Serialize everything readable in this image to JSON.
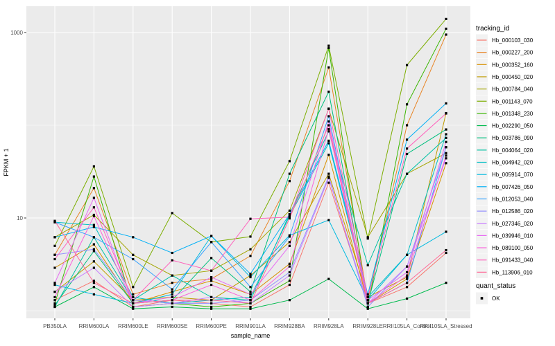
{
  "chart_data": {
    "type": "line",
    "title": "",
    "xlabel": "sample_name",
    "ylabel": "FPKM + 1",
    "yscale": "log10",
    "ytick_labels": [
      "10",
      "1000"
    ],
    "yticks": [
      10,
      1000
    ],
    "minor_grid_values": [
      1,
      100
    ],
    "grid": true,
    "legend_position": "right",
    "panel_bg": "#EBEBEB",
    "grid_color": "#FFFFFF",
    "tick_label_color": "#4D4D4D",
    "axis_title_color": "#000000",
    "point_color": "#000000",
    "legend_key_bg": "#F2F2F2",
    "legend_title": "tracking_id",
    "legend2_title": "quant_status",
    "legend2_entries": [
      "OK"
    ],
    "x_categories": [
      "PB350LA",
      "RRIM600LA",
      "RRIM600LE",
      "RRIM600SE",
      "RRIM600PE",
      "RRIM901LA",
      "RRIM928BA",
      "RRIM928LA",
      "RRIM928LE",
      "RRII105LA_Control",
      "RRII105LA_Stressed"
    ],
    "series": [
      {
        "name": "Hb_000103_030",
        "color": "#F8766D",
        "values": [
          1.3,
          2.1,
          1.1,
          1.3,
          1.2,
          1.1,
          1.9,
          24,
          1.2,
          1.8,
          4.2
        ]
      },
      {
        "name": "Hb_000227_200",
        "color": "#E88526",
        "values": [
          4.0,
          21,
          1.5,
          2.0,
          2.2,
          3.9,
          25,
          420,
          1.3,
          100,
          950
        ]
      },
      {
        "name": "Hb_000352_160",
        "color": "#D89000",
        "values": [
          2.9,
          5.2,
          1.2,
          1.6,
          2.1,
          1.5,
          3.2,
          48,
          1.2,
          2.2,
          39
        ]
      },
      {
        "name": "Hb_000450_020",
        "color": "#C09B00",
        "values": [
          1.6,
          3.4,
          1.3,
          1.4,
          1.3,
          2.4,
          5.5,
          30,
          1.4,
          2.3,
          135
        ]
      },
      {
        "name": "Hb_000784_040",
        "color": "#A3A500",
        "values": [
          6.2,
          10.8,
          4.0,
          2.4,
          2.7,
          4.6,
          12,
          150,
          6.2,
          30,
          50
        ]
      },
      {
        "name": "Hb_001143_070",
        "color": "#7CAE00",
        "values": [
          5.0,
          36,
          1.8,
          11.3,
          5.5,
          6.3,
          41,
          720,
          6.0,
          446,
          1400
        ]
      },
      {
        "name": "Hb_001348_230",
        "color": "#39B600",
        "values": [
          1.2,
          28,
          1.1,
          1.2,
          1.1,
          1.2,
          2.1,
          680,
          1.1,
          168,
          1100
        ]
      },
      {
        "name": "Hb_002290_050",
        "color": "#00BB4E",
        "values": [
          1.1,
          1.8,
          1.05,
          1.1,
          1.05,
          1.05,
          1.3,
          2.2,
          1.05,
          1.35,
          2.0
        ]
      },
      {
        "name": "Hb_003786_090",
        "color": "#00BF7D",
        "values": [
          1.15,
          4.4,
          1.2,
          1.3,
          3.7,
          1.6,
          30,
          230,
          1.2,
          49,
          90
        ]
      },
      {
        "name": "Hb_004064_020",
        "color": "#00C1A3",
        "values": [
          1.1,
          6.2,
          1.3,
          2.4,
          1.4,
          1.3,
          11,
          86,
          3.1,
          30,
          73
        ]
      },
      {
        "name": "Hb_004942_020",
        "color": "#00BFC4",
        "values": [
          9.0,
          8.4,
          1.4,
          1.2,
          1.3,
          1.4,
          10.5,
          64,
          1.4,
          4.0,
          80
        ]
      },
      {
        "name": "Hb_005914_070",
        "color": "#00BAE0",
        "values": [
          1.9,
          1.5,
          1.2,
          1.5,
          6.4,
          2.3,
          6.5,
          9.5,
          1.3,
          4.0,
          7.1
        ]
      },
      {
        "name": "Hb_007426_050",
        "color": "#00B0F6",
        "values": [
          6.2,
          8.0,
          6.2,
          4.2,
          6.4,
          2.5,
          11,
          68,
          1.5,
          70,
          172
        ]
      },
      {
        "name": "Hb_012053_040",
        "color": "#35A2FF",
        "values": [
          9.0,
          6.2,
          3.6,
          1.7,
          5.5,
          1.8,
          6.3,
          125,
          1.2,
          2.0,
          58
        ]
      },
      {
        "name": "Hb_012586_020",
        "color": "#9590FF",
        "values": [
          4.0,
          4.6,
          1.3,
          1.2,
          1.2,
          1.3,
          2.6,
          28,
          1.1,
          3.0,
          58
        ]
      },
      {
        "name": "Hb_027346_020",
        "color": "#C77CFF",
        "values": [
          1.6,
          2.9,
          1.1,
          1.2,
          1.4,
          1.2,
          2.4,
          27,
          1.2,
          3.0,
          44
        ]
      },
      {
        "name": "Hb_039946_010",
        "color": "#E76BF3",
        "values": [
          2.0,
          16.5,
          1.2,
          1.4,
          2.3,
          1.5,
          5.0,
          110,
          1.3,
          2.6,
          66
        ]
      },
      {
        "name": "Hb_089100_050",
        "color": "#FA62DB",
        "values": [
          1.4,
          10.5,
          1.2,
          1.3,
          1.9,
          1.3,
          3.0,
          91,
          1.2,
          2.4,
          47
        ]
      },
      {
        "name": "Hb_091433_040",
        "color": "#FF62BC",
        "values": [
          3.6,
          13,
          1.3,
          3.5,
          2.7,
          9.8,
          10.2,
          151,
          1.4,
          56,
          134
        ]
      },
      {
        "name": "Hb_113906_010",
        "color": "#FF6A98",
        "values": [
          9.3,
          2.0,
          1.2,
          1.3,
          1.3,
          1.2,
          9.9,
          100,
          1.2,
          2.0,
          4.5
        ]
      }
    ]
  }
}
